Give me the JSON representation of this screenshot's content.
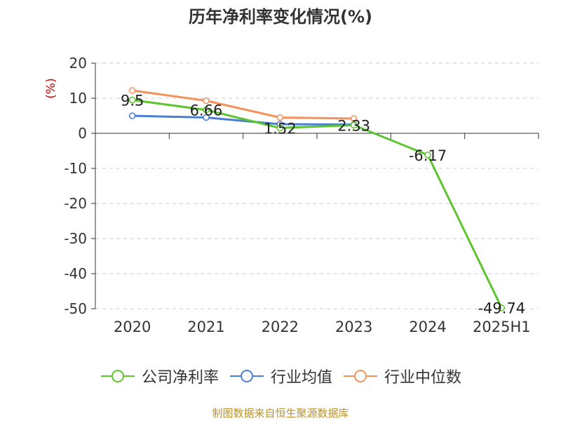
{
  "chart_data": {
    "type": "line",
    "title": "历年净利率变化情况(%)",
    "ylabel": "(%)",
    "categories": [
      "2020",
      "2021",
      "2022",
      "2023",
      "2024",
      "2025H1"
    ],
    "ylim": [
      -50,
      20
    ],
    "yticks": [
      20,
      10,
      0,
      -10,
      -20,
      -30,
      -40,
      -50
    ],
    "grid": true,
    "legend_position": "bottom",
    "series": [
      {
        "name": "公司净利率",
        "color": "#5cc52e",
        "values": [
          9.5,
          6.66,
          1.52,
          2.33,
          -6.17,
          -49.74
        ],
        "labels": [
          "9.5",
          "6.66",
          "1.52",
          "2.33",
          "-6.17",
          "-49.74"
        ]
      },
      {
        "name": "行业均值",
        "color": "#4a7fd6",
        "values": [
          5.0,
          4.5,
          2.6,
          2.5,
          null,
          null
        ]
      },
      {
        "name": "行业中位数",
        "color": "#f3925a",
        "values": [
          12.2,
          9.3,
          4.5,
          4.2,
          null,
          null
        ]
      }
    ]
  },
  "footer": "制图数据来自恒生聚源数据库"
}
